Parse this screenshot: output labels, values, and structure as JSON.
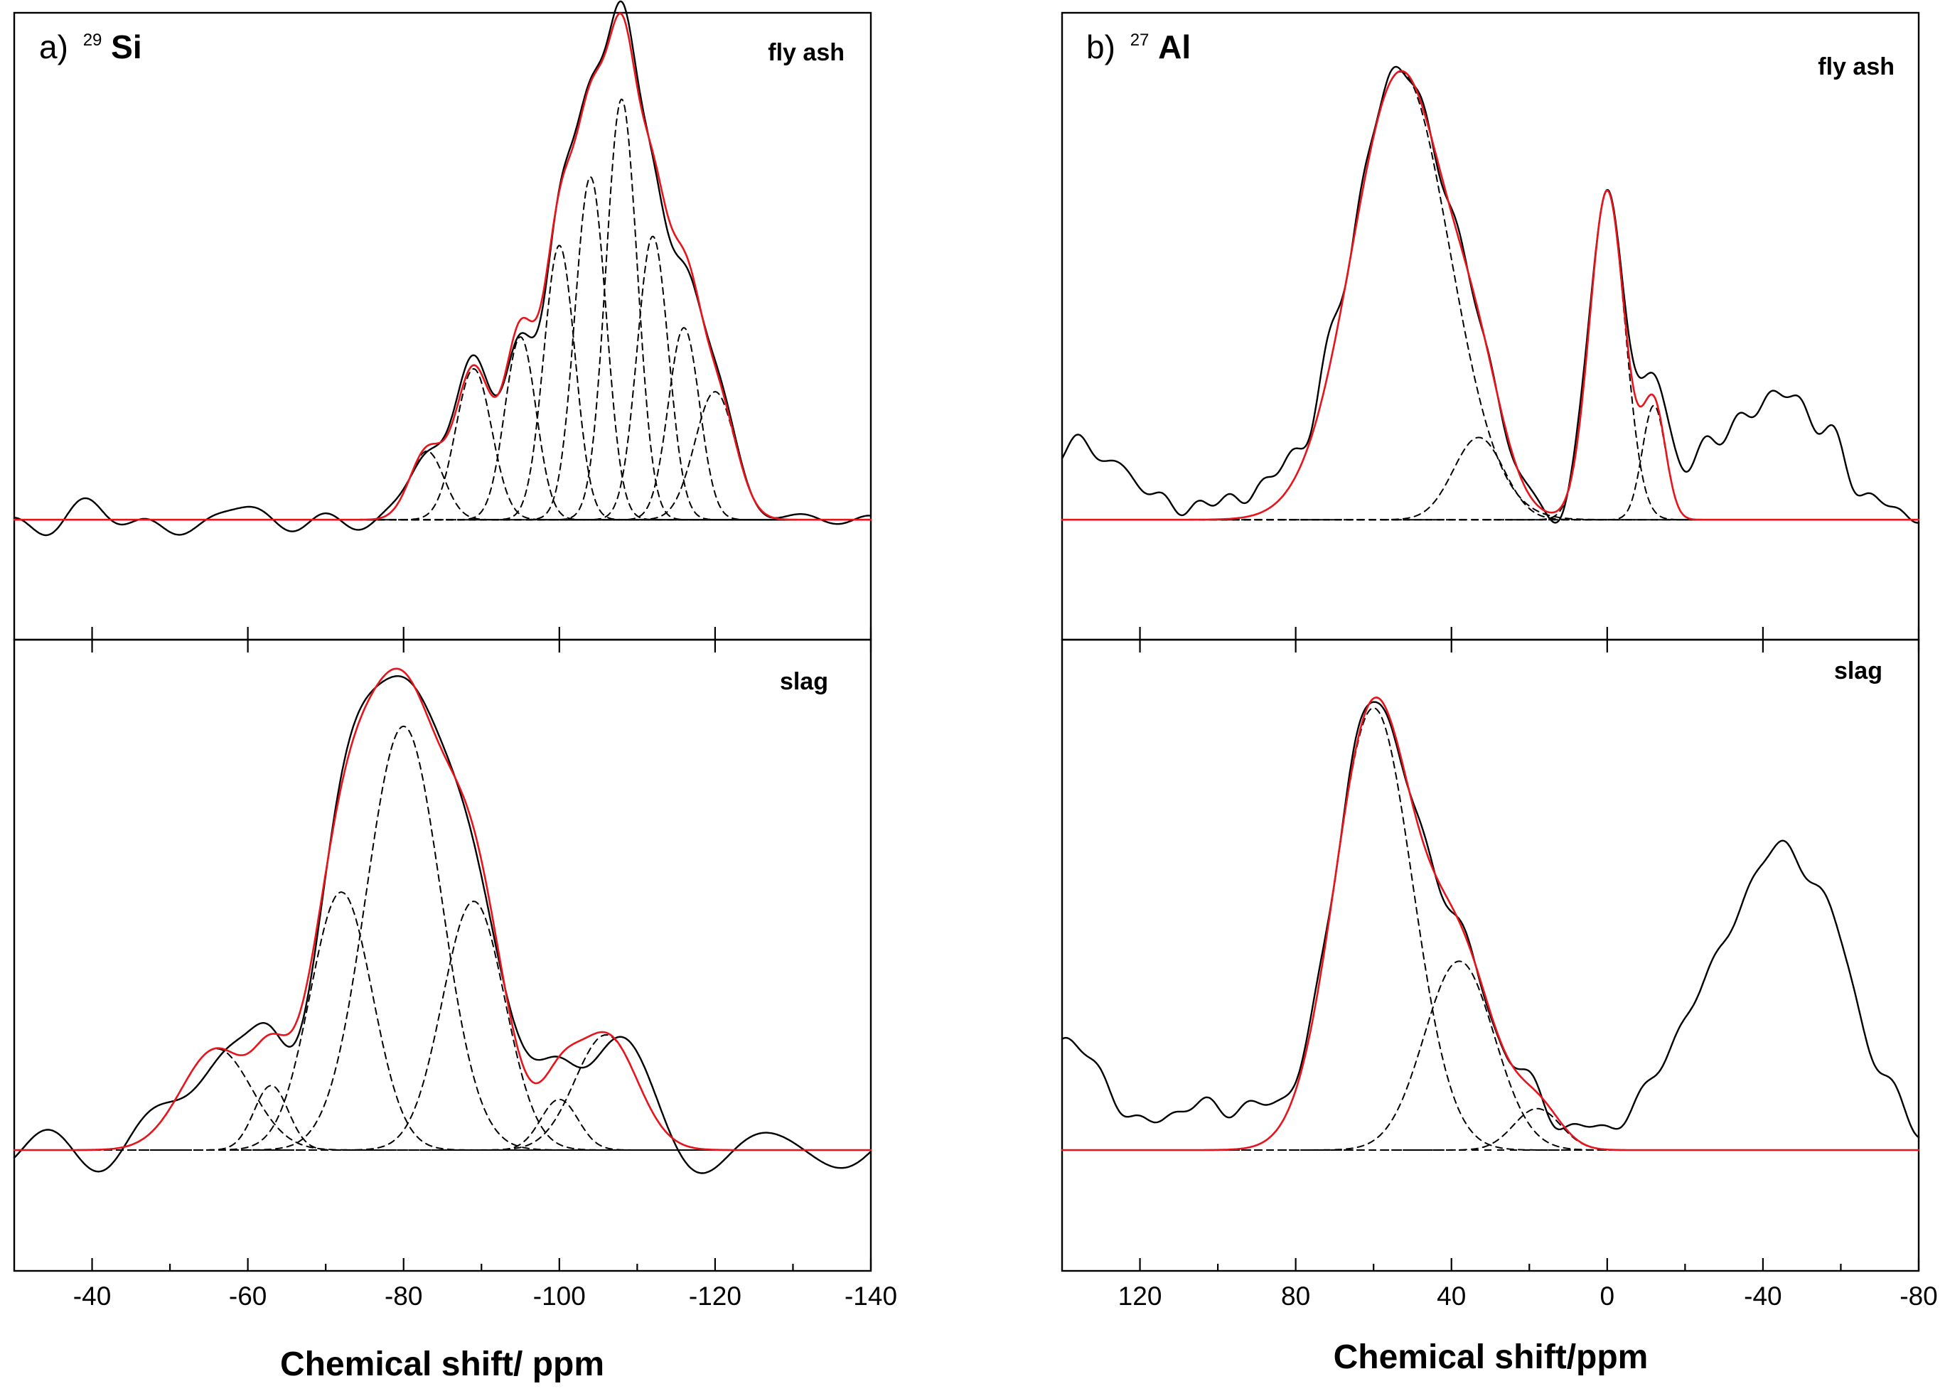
{
  "figure": {
    "panel_a_title": {
      "letter": "a)",
      "mass": "29",
      "element": "Si"
    },
    "panel_b_title": {
      "letter": "b)",
      "mass": "27",
      "element": "Al"
    },
    "panel_a_xlabel": "Chemical shift/ ppm",
    "panel_b_xlabel": "Chemical shift/ppm"
  },
  "colors": {
    "experimental": "#000000",
    "fit": "#e8141c",
    "component": "#000000"
  },
  "chart_data": [
    {
      "id": "si-fly-ash",
      "type": "line",
      "panel": "a-top",
      "label": "fly ash",
      "nucleus": "29Si",
      "xlim": [
        -30,
        -140
      ],
      "ylim": [
        -0.25,
        1.0
      ],
      "xticks": [],
      "baseline": 0,
      "components": [
        {
          "center": -83,
          "amp": 0.15,
          "width": 2.2
        },
        {
          "center": -89,
          "amp": 0.33,
          "width": 2.3
        },
        {
          "center": -95,
          "amp": 0.4,
          "width": 2.0
        },
        {
          "center": -100,
          "amp": 0.6,
          "width": 2.0
        },
        {
          "center": -104,
          "amp": 0.75,
          "width": 2.0
        },
        {
          "center": -108,
          "amp": 0.92,
          "width": 2.0
        },
        {
          "center": -112,
          "amp": 0.62,
          "width": 2.0
        },
        {
          "center": -116,
          "amp": 0.42,
          "width": 2.0
        },
        {
          "center": -120,
          "amp": 0.28,
          "width": 2.6
        }
      ],
      "experimental": {
        "noise": 0.03,
        "seed": 7,
        "extra": []
      }
    },
    {
      "id": "si-slag",
      "type": "line",
      "panel": "a-bottom",
      "label": "slag",
      "nucleus": "29Si",
      "xlim": [
        -30,
        -140
      ],
      "ylim": [
        -0.25,
        1.0
      ],
      "xticks": [
        -40,
        -60,
        -80,
        -100,
        -120,
        -140
      ],
      "xticklabels": [
        "-40",
        "-60",
        "-80",
        "-100",
        "-120",
        "-140"
      ],
      "baseline": 0,
      "components": [
        {
          "center": -56,
          "amp": 0.22,
          "width": 4.5
        },
        {
          "center": -63,
          "amp": 0.14,
          "width": 2.2
        },
        {
          "center": -72,
          "amp": 0.56,
          "width": 4.0
        },
        {
          "center": -80,
          "amp": 0.92,
          "width": 4.8
        },
        {
          "center": -89,
          "amp": 0.54,
          "width": 4.0
        },
        {
          "center": -100,
          "amp": 0.11,
          "width": 2.4
        },
        {
          "center": -106,
          "amp": 0.25,
          "width": 4.0
        }
      ],
      "experimental": {
        "noise": 0.045,
        "seed": 21,
        "extra": []
      }
    },
    {
      "id": "al-fly-ash",
      "type": "line",
      "panel": "b-top",
      "label": "fly ash",
      "nucleus": "27Al",
      "xlim": [
        140,
        -80
      ],
      "ylim": [
        -0.25,
        1.0
      ],
      "xticks": [],
      "baseline": 0,
      "components": [
        {
          "center": 53,
          "amp": 0.98,
          "width": 12.5
        },
        {
          "center": 33,
          "amp": 0.18,
          "width": 6.5
        },
        {
          "center": 0,
          "amp": 0.72,
          "width": 4.5
        },
        {
          "center": -12,
          "amp": 0.25,
          "width": 3.0
        }
      ],
      "experimental": {
        "noise": 0.02,
        "seed": 3,
        "extra": [
          {
            "center": 135,
            "amp": 0.16,
            "width": 12
          },
          {
            "center": 85,
            "amp": 0.06,
            "width": 14
          },
          {
            "center": -35,
            "amp": 0.18,
            "width": 16
          },
          {
            "center": -50,
            "amp": 0.14,
            "width": 10
          }
        ]
      }
    },
    {
      "id": "al-slag",
      "type": "line",
      "panel": "b-bottom",
      "label": "slag",
      "nucleus": "27Al",
      "xlim": [
        140,
        -80
      ],
      "ylim": [
        -0.25,
        1.0
      ],
      "xticks": [
        120,
        80,
        40,
        0,
        -40,
        -80
      ],
      "xticklabels": [
        "120",
        "80",
        "40",
        "0",
        "-40",
        "-80"
      ],
      "baseline": 0,
      "components": [
        {
          "center": 60,
          "amp": 0.96,
          "width": 10.0
        },
        {
          "center": 38,
          "amp": 0.41,
          "width": 9.0
        },
        {
          "center": 18,
          "amp": 0.09,
          "width": 6.0
        }
      ],
      "experimental": {
        "noise": 0.02,
        "seed": 11,
        "extra": [
          {
            "center": 140,
            "amp": 0.24,
            "width": 10
          },
          {
            "center": 100,
            "amp": 0.1,
            "width": 14
          },
          {
            "center": -38,
            "amp": 0.45,
            "width": 18
          },
          {
            "center": -52,
            "amp": 0.28,
            "width": 12
          }
        ]
      }
    }
  ]
}
